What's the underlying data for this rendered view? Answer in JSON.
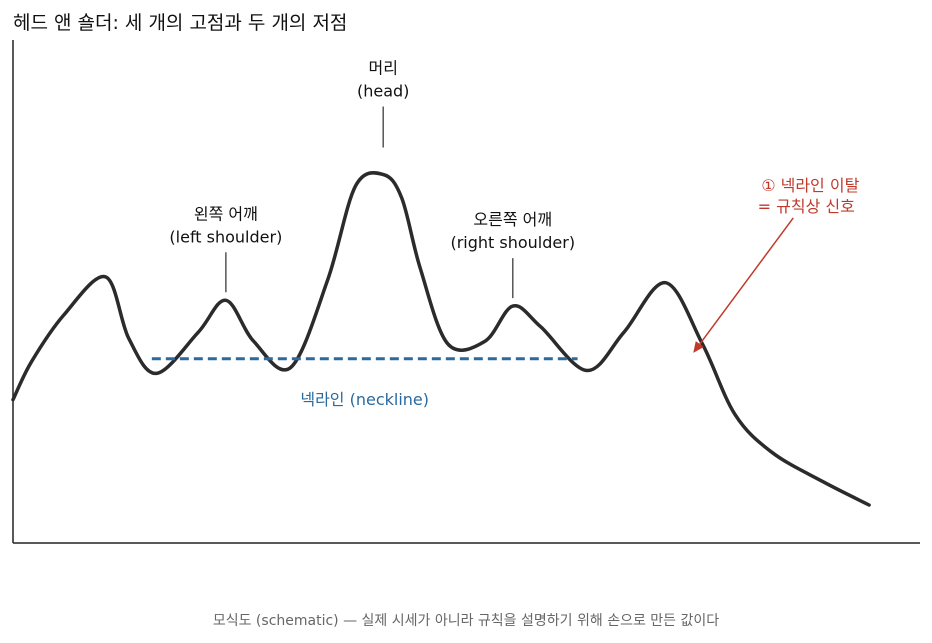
{
  "chart_data": {
    "type": "line",
    "title": "헤드 앤 숄더: 세 개의 고점과 두 개의 저점",
    "caption": "모식도 (schematic) — 실제 시세가 아니라 규칙을 설명하기 위해 손으로 만든 값이다",
    "series": [
      {
        "color": "#2b2b2b",
        "x": [
          0,
          2,
          5.5,
          10,
          12.5,
          15.5,
          20,
          23,
          26,
          30,
          34,
          37,
          40,
          42,
          44,
          47,
          51,
          54,
          57,
          62,
          66,
          70.5,
          74.5,
          78,
          82,
          87.5,
          92.5
        ],
        "y": [
          1.3,
          2.6,
          4.2,
          5.5,
          3.4,
          2.2,
          3.6,
          4.7,
          3.3,
          2.4,
          5.4,
          8.6,
          9.0,
          8.2,
          5.8,
          3.2,
          3.3,
          4.5,
          3.8,
          2.3,
          3.6,
          5.3,
          3.2,
          0.8,
          -0.5,
          -1.5,
          -2.3
        ]
      }
    ],
    "neckline": {
      "label": "넥라인 (neckline)",
      "y": 2.7,
      "x_start": 15,
      "x_end": 61,
      "color": "#2a6a9e"
    },
    "annotations": {
      "head": {
        "line1": "머리",
        "line2": "(head)",
        "x": 40,
        "y": 9.0
      },
      "left_shoulder": {
        "line1": "왼쪽 어깨",
        "line2": "(left shoulder)",
        "x": 23,
        "y": 4.7
      },
      "right_shoulder": {
        "line1": "오른쪽 어깨",
        "line2": "(right shoulder)",
        "x": 54,
        "y": 4.5
      },
      "breakout": {
        "line1": "① 넥라인 이탈",
        "line2": "= 규칙상 신호",
        "x": 73.5,
        "y": 2.9,
        "color": "#c0392b"
      }
    },
    "xlim": [
      0,
      98
    ],
    "ylim": [
      -3.6,
      13.6
    ],
    "grid": false,
    "axes": "left-bottom only, no ticks"
  }
}
